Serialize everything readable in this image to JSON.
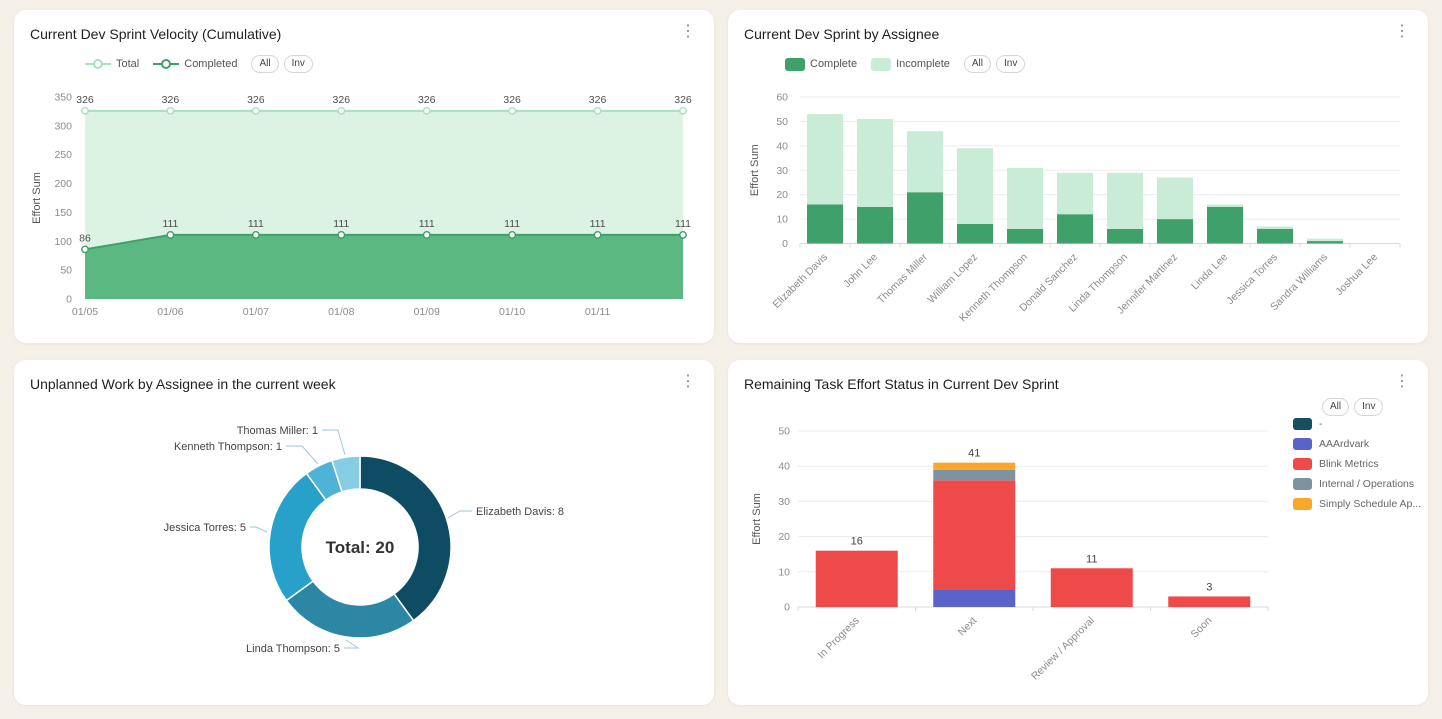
{
  "icons": {
    "kebab_menu": "⋮"
  },
  "panels": [
    {
      "title": "Current Dev Sprint Velocity (Cumulative)",
      "buttons": [
        "All",
        "Inv"
      ],
      "chart_data": {
        "type": "area",
        "x": [
          "01/05",
          "01/06",
          "01/07",
          "01/08",
          "01/09",
          "01/10",
          "01/11",
          ""
        ],
        "series": [
          {
            "name": "Total",
            "values": [
              326,
              326,
              326,
              326,
              326,
              326,
              326,
              326
            ],
            "line_color": "#a9e0bf",
            "fill_color": "#dcf3e3"
          },
          {
            "name": "Completed",
            "values": [
              86,
              111,
              111,
              111,
              111,
              111,
              111,
              111
            ],
            "line_color": "#3ea169",
            "fill_color": "#5bb881"
          }
        ],
        "ylabel": "Effort Sum",
        "ylim": [
          0,
          350
        ],
        "ytick_step": 50,
        "point_labels": true,
        "legend_position": "top",
        "grid": false
      }
    },
    {
      "title": "Current Dev Sprint by Assignee",
      "buttons": [
        "All",
        "Inv"
      ],
      "chart_data": {
        "type": "bar",
        "stacked": true,
        "categories": [
          "Elizabeth Davis",
          "John Lee",
          "Thomas Miller",
          "William Lopez",
          "Kenneth Thompson",
          "Donald Sanchez",
          "Linda Thompson",
          "Jennifer Martinez",
          "Linda Lee",
          "Jessica Torres",
          "Sandra Williams",
          "Joshua Lee"
        ],
        "series": [
          {
            "name": "Complete",
            "color": "#3fa169",
            "values": [
              16,
              15,
              21,
              8,
              6,
              12,
              6,
              10,
              15,
              6,
              1,
              0
            ]
          },
          {
            "name": "Incomplete",
            "color": "#c8ecd6",
            "values": [
              37,
              36,
              25,
              31,
              25,
              17,
              23,
              17,
              1,
              1,
              1,
              0
            ]
          }
        ],
        "ylabel": "Effort Sum",
        "ylim": [
          0,
          60
        ],
        "ytick_step": 10,
        "legend_position": "top",
        "grid": true
      }
    },
    {
      "title": "Unplanned Work by Assignee in the current week",
      "buttons": [],
      "chart_data": {
        "type": "pie",
        "donut": true,
        "center_label": "Total: 20",
        "slices": [
          {
            "label": "Elizabeth Davis",
            "value": 8,
            "color": "#0e4c64"
          },
          {
            "label": "Linda Thompson",
            "value": 5,
            "color": "#2c87a5"
          },
          {
            "label": "Jessica Torres",
            "value": 5,
            "color": "#28a1ca"
          },
          {
            "label": "Kenneth Thompson",
            "value": 1,
            "color": "#4fb3d6"
          },
          {
            "label": "Thomas Miller",
            "value": 1,
            "color": "#86cde4"
          }
        ]
      }
    },
    {
      "title": "Remaining Task Effort Status in Current Dev Sprint",
      "buttons": [
        "All",
        "Inv"
      ],
      "chart_data": {
        "type": "bar",
        "stacked": true,
        "categories": [
          "In Progress",
          "Next",
          "Review / Approval",
          "Soon"
        ],
        "series": [
          {
            "name": "-",
            "color": "#15505c",
            "values": [
              0,
              0,
              0,
              0
            ]
          },
          {
            "name": "AAArdvark",
            "color": "#5a63c8",
            "values": [
              0,
              5,
              0,
              0
            ]
          },
          {
            "name": "Blink Metrics",
            "color": "#ed4a49",
            "values": [
              16,
              31,
              11,
              3
            ]
          },
          {
            "name": "Internal / Operations",
            "color": "#7d93a2",
            "values": [
              0,
              3,
              0,
              0
            ]
          },
          {
            "name": "Simply Schedule Ap...",
            "color": "#f9a62b",
            "values": [
              0,
              2,
              0,
              0
            ]
          }
        ],
        "totals": [
          16,
          41,
          11,
          3
        ],
        "ylabel": "Effort Sum",
        "ylim": [
          0,
          50
        ],
        "ytick_step": 10,
        "legend_position": "right",
        "grid": true
      }
    }
  ]
}
